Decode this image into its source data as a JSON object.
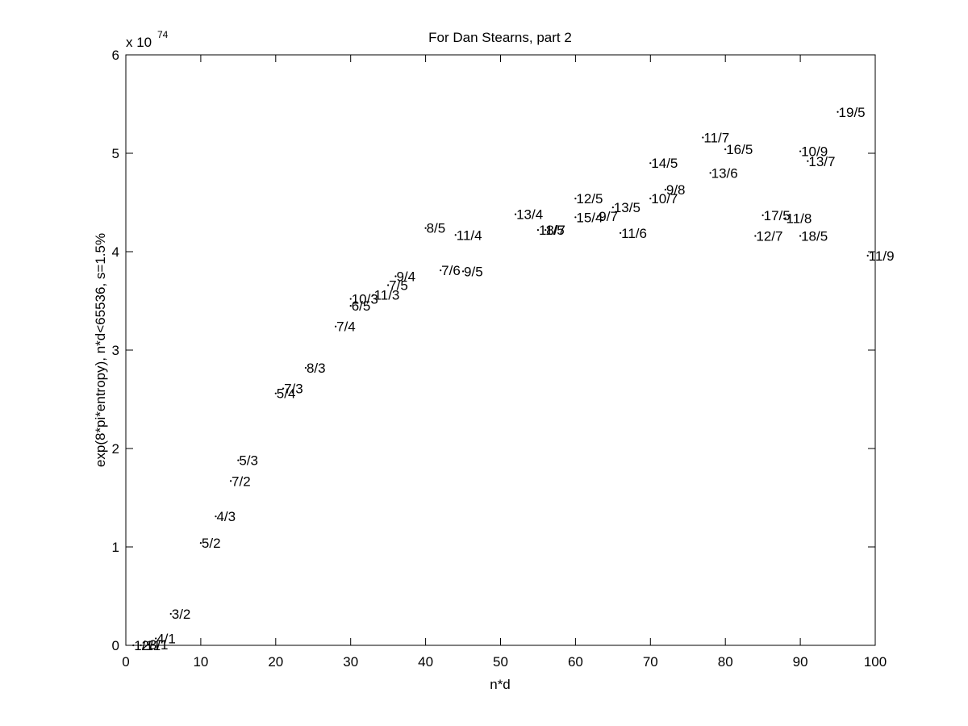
{
  "chart_data": {
    "type": "scatter",
    "title": "For Dan Stearns, part 2",
    "xlabel": "n*d",
    "ylabel": "exp(8*pi*entropy), n*d<65536, s=1.5%",
    "y_exponent_label": "x 10",
    "y_exponent": "74",
    "xlim": [
      0,
      100
    ],
    "ylim": [
      0,
      6
    ],
    "x_ticks": [
      0,
      10,
      20,
      30,
      40,
      50,
      60,
      70,
      80,
      90,
      100
    ],
    "y_ticks": [
      0,
      1,
      2,
      3,
      4,
      5,
      6
    ],
    "grid": false,
    "marker": "dot",
    "points": [
      {
        "label": "1/1",
        "x": 1,
        "y": 0.0
      },
      {
        "label": "2/1",
        "x": 2,
        "y": 0.0
      },
      {
        "label": "3/1",
        "x": 3,
        "y": 0.01
      },
      {
        "label": "4/1",
        "x": 4,
        "y": 0.07
      },
      {
        "label": "3/2",
        "x": 6,
        "y": 0.32
      },
      {
        "label": "5/2",
        "x": 10,
        "y": 1.04
      },
      {
        "label": "4/3",
        "x": 12,
        "y": 1.31
      },
      {
        "label": "7/2",
        "x": 14,
        "y": 1.67
      },
      {
        "label": "5/3",
        "x": 15,
        "y": 1.88
      },
      {
        "label": "5/4",
        "x": 20,
        "y": 2.56
      },
      {
        "label": "7/3",
        "x": 21,
        "y": 2.61
      },
      {
        "label": "8/3",
        "x": 24,
        "y": 2.82
      },
      {
        "label": "7/4",
        "x": 28,
        "y": 3.24
      },
      {
        "label": "6/5",
        "x": 30,
        "y": 3.45
      },
      {
        "label": "10/3",
        "x": 30,
        "y": 3.52
      },
      {
        "label": "11/3",
        "x": 33,
        "y": 3.56
      },
      {
        "label": "7/5",
        "x": 35,
        "y": 3.66
      },
      {
        "label": "9/4",
        "x": 36,
        "y": 3.75
      },
      {
        "label": "8/5",
        "x": 40,
        "y": 4.24
      },
      {
        "label": "7/6",
        "x": 42,
        "y": 3.81
      },
      {
        "label": "11/4",
        "x": 44,
        "y": 4.17
      },
      {
        "label": "9/5",
        "x": 45,
        "y": 3.8
      },
      {
        "label": "13/4",
        "x": 52,
        "y": 4.38
      },
      {
        "label": "11/5",
        "x": 55,
        "y": 4.22
      },
      {
        "label": "8/7",
        "x": 56,
        "y": 4.22
      },
      {
        "label": "12/5",
        "x": 60,
        "y": 4.54
      },
      {
        "label": "15/4",
        "x": 60,
        "y": 4.35
      },
      {
        "label": "9/7",
        "x": 63,
        "y": 4.36
      },
      {
        "label": "13/5",
        "x": 65,
        "y": 4.45
      },
      {
        "label": "11/6",
        "x": 66,
        "y": 4.19
      },
      {
        "label": "14/5",
        "x": 70,
        "y": 4.9
      },
      {
        "label": "10/7",
        "x": 70,
        "y": 4.54
      },
      {
        "label": "9/8",
        "x": 72,
        "y": 4.63
      },
      {
        "label": "11/7",
        "x": 77,
        "y": 5.16
      },
      {
        "label": "13/6",
        "x": 78,
        "y": 4.8
      },
      {
        "label": "16/5",
        "x": 80,
        "y": 5.04
      },
      {
        "label": "12/7",
        "x": 84,
        "y": 4.16
      },
      {
        "label": "17/5",
        "x": 85,
        "y": 4.37
      },
      {
        "label": "11/8",
        "x": 88,
        "y": 4.34
      },
      {
        "label": "10/9",
        "x": 90,
        "y": 5.02
      },
      {
        "label": "18/5",
        "x": 90,
        "y": 4.16
      },
      {
        "label": "13/7",
        "x": 91,
        "y": 4.92
      },
      {
        "label": "19/5",
        "x": 95,
        "y": 5.42
      },
      {
        "label": "11/9",
        "x": 99,
        "y": 3.96
      }
    ]
  }
}
